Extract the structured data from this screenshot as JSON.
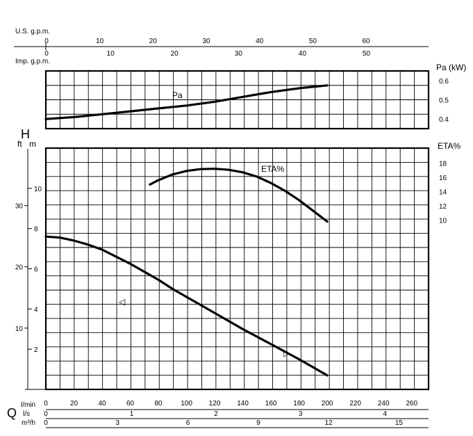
{
  "chart_data": [
    {
      "type": "line",
      "name": "pa-chart",
      "ylabel": "Pa (kW)",
      "ylim": [
        0.35,
        0.65
      ],
      "yticks": [
        "0.4",
        "0.5",
        "0.6"
      ],
      "series": [
        {
          "name": "Pa",
          "x": [
            0,
            20,
            40,
            60,
            80,
            100,
            120,
            140,
            160,
            180,
            200
          ],
          "y": [
            0.4,
            0.41,
            0.425,
            0.44,
            0.455,
            0.47,
            0.49,
            0.515,
            0.54,
            0.56,
            0.575
          ]
        }
      ],
      "grid": true
    },
    {
      "type": "line",
      "name": "eta-chart",
      "ylabel": "ETA%",
      "ylim": [
        8,
        20
      ],
      "yticks": [
        "10",
        "12",
        "14",
        "16",
        "18"
      ],
      "series": [
        {
          "name": "ETA%",
          "x": [
            74,
            80,
            90,
            100,
            110,
            120,
            130,
            140,
            150,
            160,
            170,
            180,
            190,
            200
          ],
          "y": [
            15.0,
            15.6,
            16.4,
            16.9,
            17.15,
            17.2,
            17.05,
            16.7,
            16.1,
            15.2,
            14.1,
            12.8,
            11.3,
            9.8
          ]
        }
      ],
      "grid": true
    },
    {
      "type": "line",
      "name": "head-chart",
      "y_left_inner_label": "m",
      "y_left_outer_label": "ft",
      "y_symbol": "H",
      "ylim": [
        0,
        12
      ],
      "yticks_m": [
        "2",
        "4",
        "6",
        "8",
        "10"
      ],
      "yticks_ft": [
        "10",
        "20",
        "30"
      ],
      "series": [
        {
          "name": "H",
          "x": [
            0,
            10,
            20,
            30,
            40,
            50,
            60,
            70,
            80,
            90,
            100,
            120,
            140,
            160,
            180,
            200
          ],
          "y": [
            7.6,
            7.55,
            7.4,
            7.2,
            6.95,
            6.6,
            6.25,
            5.85,
            5.45,
            5.0,
            4.6,
            3.8,
            3.0,
            2.25,
            1.5,
            0.7
          ]
        }
      ],
      "markers": [
        "◁",
        "▷"
      ],
      "grid": true
    }
  ],
  "top_axes": {
    "usgpm_label": "U.S. g.p.m.",
    "usgpm_ticks": [
      "0",
      "10",
      "20",
      "30",
      "40",
      "50",
      "60"
    ],
    "impgpm_label": "Imp. g.p.m.",
    "impgpm_ticks": [
      "0",
      "10",
      "20",
      "30",
      "40",
      "50"
    ]
  },
  "bottom_axes": {
    "q_symbol": "Q",
    "lmin_label": "l/min",
    "lmin_ticks": [
      "0",
      "20",
      "40",
      "60",
      "80",
      "100",
      "120",
      "140",
      "160",
      "180",
      "200",
      "220",
      "240",
      "260"
    ],
    "ls_label": "l/s",
    "ls_ticks": [
      "0",
      "1",
      "2",
      "3",
      "4"
    ],
    "m3h_label": "m³/h",
    "m3h_ticks": [
      "0",
      "3",
      "6",
      "9",
      "12",
      "15"
    ]
  }
}
